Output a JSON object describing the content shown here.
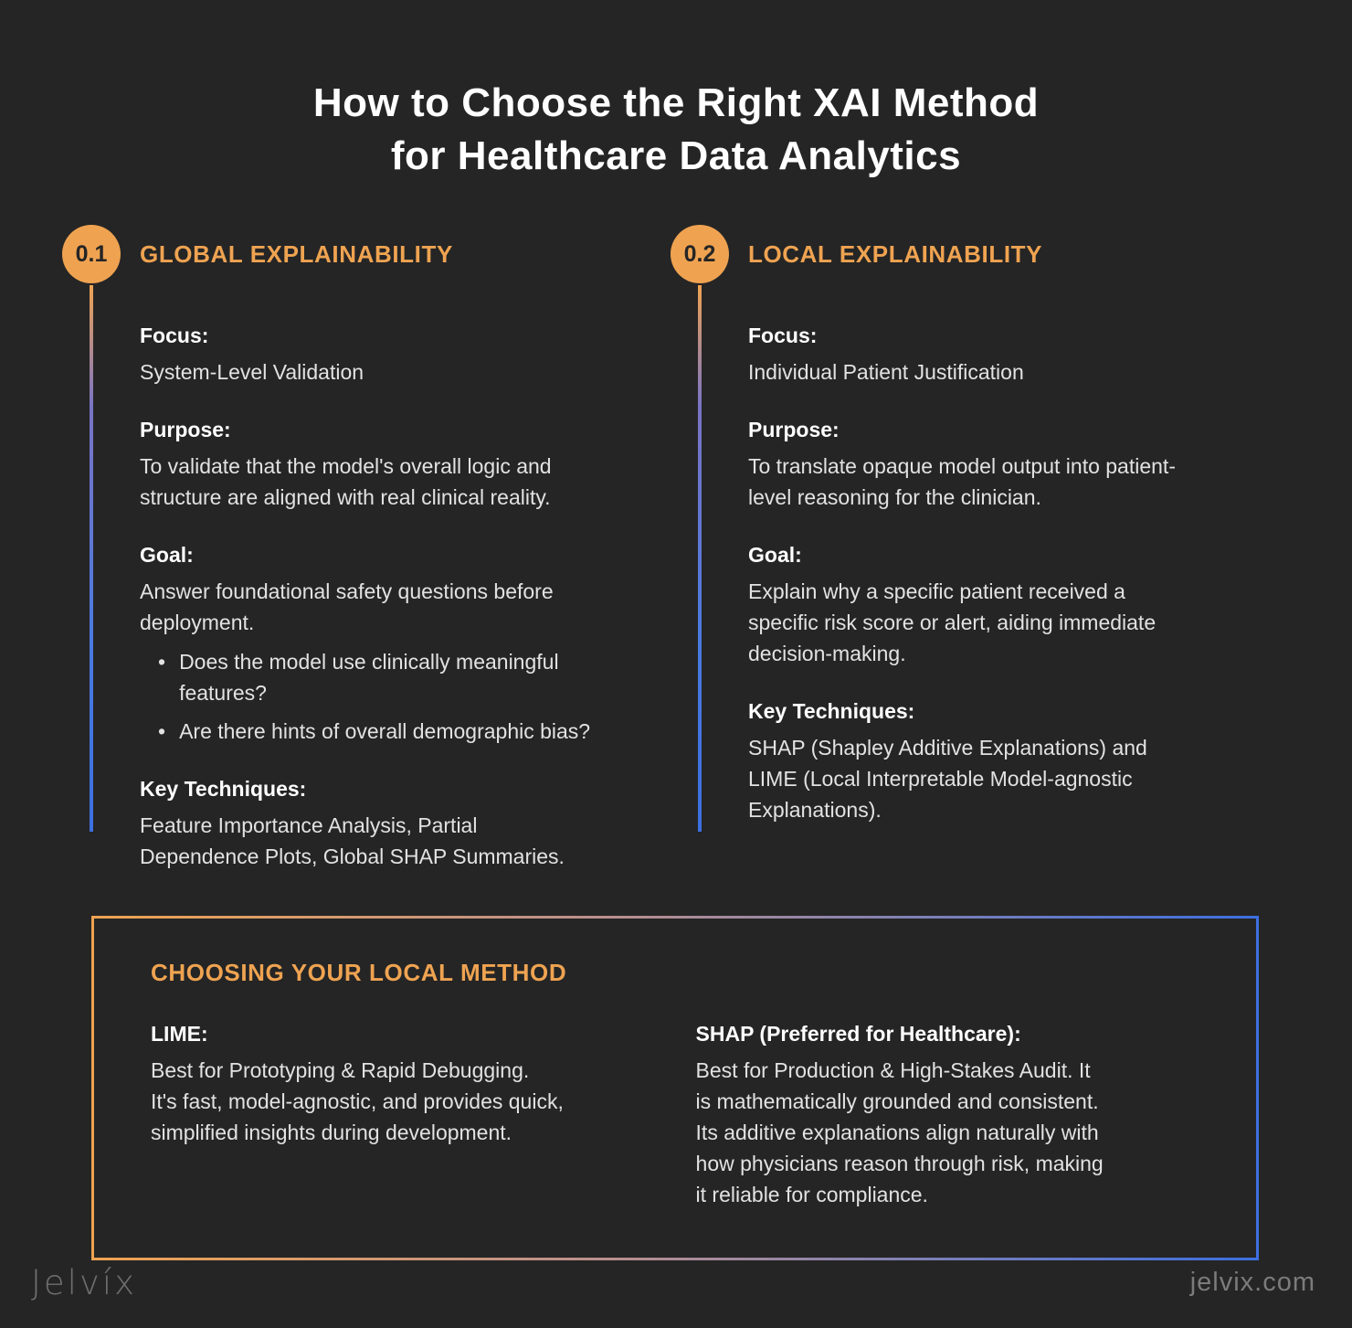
{
  "header": {
    "title_line1": "How to Choose the Right XAI Method",
    "title_line2": "for Healthcare Data Analytics"
  },
  "glyphs": {
    "bullet": "•"
  },
  "colors": {
    "background": "#252525",
    "accent_orange": "#EFA351",
    "accent_blue": "#3C6FE0",
    "body_text": "#e2e2e2",
    "heading_text": "#ffffff"
  },
  "columns": [
    {
      "badge": "0.1",
      "heading": "GLOBAL EXPLAINABILITY",
      "sections": [
        {
          "label": "Focus:",
          "body": "System-Level Validation"
        },
        {
          "label": "Purpose:",
          "body": "To validate that the model's overall logic and\nstructure are aligned with real clinical reality."
        },
        {
          "label": "Goal:",
          "body": "Answer foundational safety questions before\ndeployment.",
          "bullets": [
            "Does the model use clinically meaningful\nfeatures?",
            "Are there hints of overall demographic bias?"
          ]
        },
        {
          "label": "Key Techniques:",
          "body": "Feature Importance Analysis, Partial\nDependence Plots, Global SHAP Summaries."
        }
      ]
    },
    {
      "badge": "0.2",
      "heading": "LOCAL EXPLAINABILITY",
      "sections": [
        {
          "label": "Focus:",
          "body": "Individual Patient Justification"
        },
        {
          "label": "Purpose:",
          "body": "To translate opaque model output into patient-\nlevel reasoning for the clinician."
        },
        {
          "label": "Goal:",
          "body": "Explain why a specific patient received a\nspecific risk score or alert, aiding immediate\ndecision-making."
        },
        {
          "label": "Key Techniques:",
          "body": "SHAP (Shapley Additive Explanations) and\nLIME (Local Interpretable Model-agnostic\nExplanations)."
        }
      ]
    }
  ],
  "bottom_box": {
    "heading": "CHOOSING YOUR LOCAL METHOD",
    "items": [
      {
        "label": "LIME:",
        "body": "Best for Prototyping & Rapid Debugging.\nIt's fast, model-agnostic, and provides quick,\nsimplified insights during development."
      },
      {
        "label": "SHAP (Preferred for Healthcare):",
        "body": "Best for Production & High-Stakes Audit. It\nis mathematically grounded and consistent.\nIts additive explanations align naturally with\nhow physicians reason through risk, making\nit reliable for compliance."
      }
    ]
  },
  "footer": {
    "logo": "Jelvíx",
    "website": "jelvix.com"
  }
}
